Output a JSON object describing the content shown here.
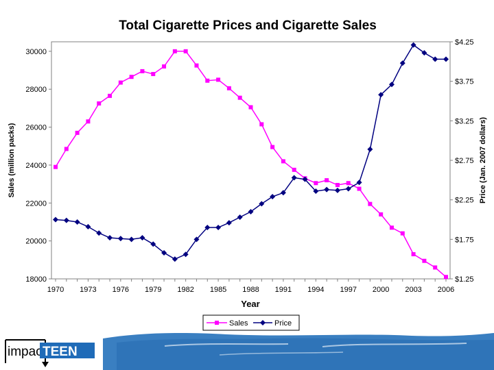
{
  "chart_data": {
    "type": "line",
    "title": "Total Cigarette Prices and Cigarette Sales",
    "xlabel": "Year",
    "ylabel": "Sales (million packs)",
    "y2label": "Price (Jan. 2007 dollars)",
    "x": [
      1970,
      1971,
      1972,
      1973,
      1974,
      1975,
      1976,
      1977,
      1978,
      1979,
      1980,
      1981,
      1982,
      1983,
      1984,
      1985,
      1986,
      1987,
      1988,
      1989,
      1990,
      1991,
      1992,
      1993,
      1994,
      1995,
      1996,
      1997,
      1998,
      1999,
      2000,
      2001,
      2002,
      2003,
      2004,
      2005,
      2006
    ],
    "xlim": [
      1970,
      2006
    ],
    "xticks": [
      1970,
      1973,
      1976,
      1979,
      1982,
      1985,
      1988,
      1991,
      1994,
      1997,
      2000,
      2003,
      2006
    ],
    "ylim": [
      18000,
      30500
    ],
    "yticks": [
      18000,
      20000,
      22000,
      24000,
      26000,
      28000,
      30000
    ],
    "y2lim": [
      1.25,
      4.25
    ],
    "y2ticks": [
      1.25,
      1.75,
      2.25,
      2.75,
      3.25,
      3.75,
      4.25
    ],
    "y2ticklabels": [
      "$1.25",
      "$1.75",
      "$2.25",
      "$2.75",
      "$3.25",
      "$3.75",
      "$4.25"
    ],
    "series": [
      {
        "name": "Sales",
        "axis": "left",
        "color": "#ff00ff",
        "marker": "square",
        "values": [
          23900,
          24850,
          25700,
          26300,
          27250,
          27650,
          28350,
          28650,
          28950,
          28800,
          29200,
          30000,
          30000,
          29250,
          28450,
          28500,
          28050,
          27550,
          27050,
          26150,
          24950,
          24200,
          23750,
          23300,
          23050,
          23200,
          22950,
          23050,
          22750,
          21950,
          21400,
          20700,
          20400,
          19300,
          18950,
          18600,
          18100
        ]
      },
      {
        "name": "Price",
        "axis": "right",
        "color": "#000080",
        "marker": "diamond",
        "values": [
          2.0,
          1.99,
          1.97,
          1.91,
          1.83,
          1.77,
          1.76,
          1.75,
          1.77,
          1.69,
          1.58,
          1.5,
          1.56,
          1.75,
          1.9,
          1.9,
          1.96,
          2.03,
          2.1,
          2.2,
          2.29,
          2.34,
          2.53,
          2.51,
          2.36,
          2.38,
          2.37,
          2.39,
          2.47,
          2.89,
          3.58,
          3.71,
          3.98,
          4.21,
          4.11,
          4.03,
          4.03
        ]
      }
    ],
    "legend_position": "bottom-center",
    "grid": false
  },
  "logo": {
    "text_left": "impac",
    "text_right": "TEEN",
    "accent_color": "#1f6bb8"
  }
}
